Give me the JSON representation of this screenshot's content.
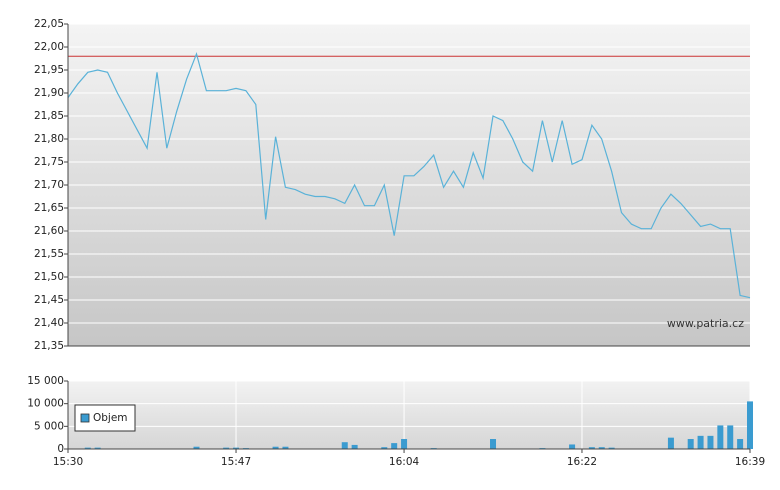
{
  "chart_data": [
    {
      "type": "line",
      "x": [
        "15:30",
        "15:31",
        "15:32",
        "15:33",
        "15:34",
        "15:35",
        "15:36",
        "15:37",
        "15:38",
        "15:39",
        "15:40",
        "15:41",
        "15:42",
        "15:43",
        "15:44",
        "15:45",
        "15:46",
        "15:47",
        "15:48",
        "15:49",
        "15:50",
        "15:51",
        "15:52",
        "15:53",
        "15:54",
        "15:55",
        "15:56",
        "15:57",
        "15:58",
        "15:59",
        "16:00",
        "16:01",
        "16:02",
        "16:03",
        "16:04",
        "16:05",
        "16:06",
        "16:07",
        "16:08",
        "16:09",
        "16:10",
        "16:11",
        "16:12",
        "16:13",
        "16:14",
        "16:15",
        "16:16",
        "16:17",
        "16:18",
        "16:19",
        "16:20",
        "16:21",
        "16:22",
        "16:23",
        "16:24",
        "16:25",
        "16:26",
        "16:27",
        "16:28",
        "16:29",
        "16:30",
        "16:31",
        "16:32",
        "16:33",
        "16:34",
        "16:35",
        "16:36",
        "16:37",
        "16:38",
        "16:39"
      ],
      "xlim": [
        "15:30",
        "16:39"
      ],
      "series": [
        {
          "color": "#5ab2d8",
          "values": [
            21.89,
            21.92,
            21.945,
            21.95,
            21.945,
            21.9,
            21.86,
            21.82,
            21.78,
            21.945,
            21.78,
            21.86,
            21.93,
            21.985,
            21.905,
            21.905,
            21.905,
            21.91,
            21.905,
            21.875,
            21.625,
            21.805,
            21.695,
            21.69,
            21.68,
            21.675,
            21.675,
            21.67,
            21.66,
            21.7,
            21.655,
            21.655,
            21.7,
            21.59,
            21.72,
            21.72,
            21.74,
            21.765,
            21.695,
            21.73,
            21.695,
            21.77,
            21.715,
            21.85,
            21.84,
            21.8,
            21.75,
            21.73,
            21.84,
            21.75,
            21.84,
            21.745,
            21.755,
            21.83,
            21.8,
            21.73,
            21.64,
            21.615,
            21.605,
            21.605,
            21.65,
            21.68,
            21.66,
            21.635,
            21.61,
            21.615,
            21.605,
            21.605,
            21.46,
            21.455
          ]
        }
      ],
      "ylim": [
        21.35,
        22.05
      ],
      "yticks": [
        {
          "value": 21.35,
          "label": "21,35"
        },
        {
          "value": 21.4,
          "label": "21,40"
        },
        {
          "value": 21.45,
          "label": "21,45"
        },
        {
          "value": 21.5,
          "label": "21,50"
        },
        {
          "value": 21.55,
          "label": "21,55"
        },
        {
          "value": 21.6,
          "label": "21,60"
        },
        {
          "value": 21.65,
          "label": "21,65"
        },
        {
          "value": 21.7,
          "label": "21,70"
        },
        {
          "value": 21.75,
          "label": "21,75"
        },
        {
          "value": 21.8,
          "label": "21,80"
        },
        {
          "value": 21.85,
          "label": "21,85"
        },
        {
          "value": 21.9,
          "label": "21,90"
        },
        {
          "value": 21.95,
          "label": "21,95"
        },
        {
          "value": 22.0,
          "label": "22,00"
        },
        {
          "value": 22.05,
          "label": "22,05"
        }
      ],
      "reference_line": {
        "value": 21.98,
        "color": "#cc3333"
      },
      "watermark": "www.patria.cz",
      "grid": true
    },
    {
      "type": "bar",
      "x": [
        "15:30",
        "15:31",
        "15:32",
        "15:33",
        "15:34",
        "15:35",
        "15:36",
        "15:37",
        "15:38",
        "15:39",
        "15:40",
        "15:41",
        "15:42",
        "15:43",
        "15:44",
        "15:45",
        "15:46",
        "15:47",
        "15:48",
        "15:49",
        "15:50",
        "15:51",
        "15:52",
        "15:53",
        "15:54",
        "15:55",
        "15:56",
        "15:57",
        "15:58",
        "15:59",
        "16:00",
        "16:01",
        "16:02",
        "16:03",
        "16:04",
        "16:05",
        "16:06",
        "16:07",
        "16:08",
        "16:09",
        "16:10",
        "16:11",
        "16:12",
        "16:13",
        "16:14",
        "16:15",
        "16:16",
        "16:17",
        "16:18",
        "16:19",
        "16:20",
        "16:21",
        "16:22",
        "16:23",
        "16:24",
        "16:25",
        "16:26",
        "16:27",
        "16:28",
        "16:29",
        "16:30",
        "16:31",
        "16:32",
        "16:33",
        "16:34",
        "16:35",
        "16:36",
        "16:37",
        "16:38",
        "16:39"
      ],
      "xlim": [
        "15:30",
        "16:39"
      ],
      "xticks": [
        "15:30",
        "15:47",
        "16:04",
        "16:22",
        "16:39"
      ],
      "series": [
        {
          "name": "Objem",
          "color": "#3a9bd0",
          "values": [
            0,
            0,
            300,
            300,
            0,
            0,
            0,
            0,
            0,
            0,
            0,
            0,
            0,
            500,
            0,
            0,
            300,
            300,
            200,
            0,
            0,
            500,
            500,
            0,
            0,
            0,
            0,
            0,
            1500,
            900,
            0,
            0,
            400,
            1300,
            2200,
            0,
            0,
            200,
            0,
            0,
            0,
            0,
            0,
            2200,
            0,
            0,
            0,
            0,
            200,
            0,
            0,
            1000,
            0,
            400,
            400,
            300,
            0,
            0,
            0,
            0,
            0,
            2500,
            0,
            2200,
            2900,
            2900,
            5200,
            5200,
            2200,
            10500
          ]
        }
      ],
      "ylim": [
        0,
        15000
      ],
      "yticks": [
        0,
        {
          "value": 5000,
          "label": "5 000"
        },
        {
          "value": 10000,
          "label": "10 000"
        },
        {
          "value": 15000,
          "label": "15 000"
        }
      ],
      "grid": true,
      "legend": "left"
    }
  ]
}
